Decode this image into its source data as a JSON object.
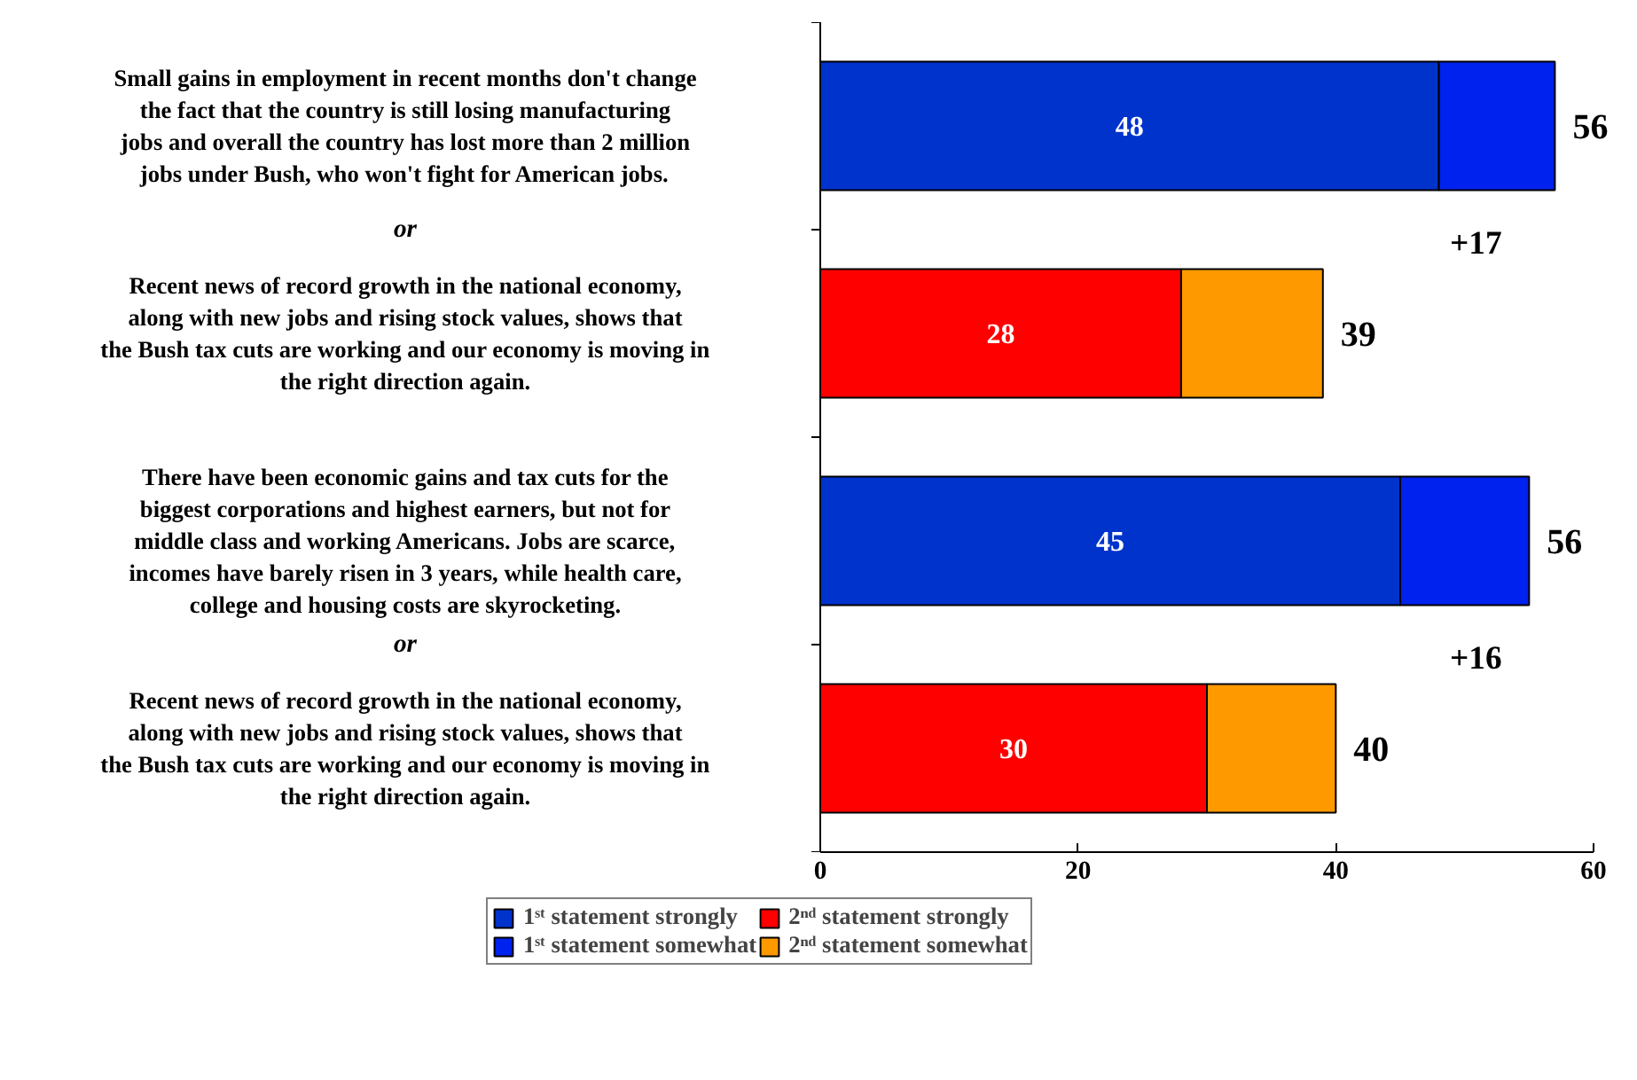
{
  "chart_data": {
    "type": "bar",
    "orientation": "horizontal",
    "stacked": true,
    "categories": [
      "Small gains in employment in recent months don't change the fact that the country is still losing manufacturing jobs and overall the country has lost more than 2 million jobs under Bush, who won't fight for American jobs.",
      "Recent news of record growth in the national economy, along with new jobs and rising stock values, shows that the Bush tax cuts are working and our economy is moving in the right direction again.",
      "There have been economic gains and tax cuts for the biggest corporations and highest earners, but not for middle class and working Americans. Jobs are scarce, incomes have barely risen in 3 years, while health care, college and housing costs are skyrocketing.",
      "Recent news of record growth in the national economy, along with new jobs and rising stock values, shows that the Bush tax cuts are working and our economy is moving in the right direction again."
    ],
    "series": [
      {
        "name": "1ˢᵗ statement strongly",
        "color": "#0033cc",
        "values": [
          48,
          null,
          45,
          null
        ],
        "value_labels": [
          "48",
          null,
          "45",
          null
        ]
      },
      {
        "name": "1ˢᵗ statement somewhat",
        "color": "#0022ee",
        "values": [
          9,
          null,
          10,
          null
        ]
      },
      {
        "name": "2ⁿᵈ statement strongly",
        "color": "#ff0000",
        "values": [
          null,
          28,
          null,
          30
        ],
        "value_labels": [
          null,
          "28",
          null,
          "30"
        ]
      },
      {
        "name": "2ⁿᵈ statement somewhat",
        "color": "#ff9900",
        "values": [
          null,
          11,
          null,
          10
        ]
      }
    ],
    "totals": [
      "56",
      "39",
      "56",
      "40"
    ],
    "annotations": [
      "or",
      "or",
      "+17",
      "+16"
    ],
    "xlim": [
      0,
      60
    ],
    "xticks": [
      0,
      20,
      40,
      60
    ],
    "grid": false,
    "legend": "bottom"
  }
}
